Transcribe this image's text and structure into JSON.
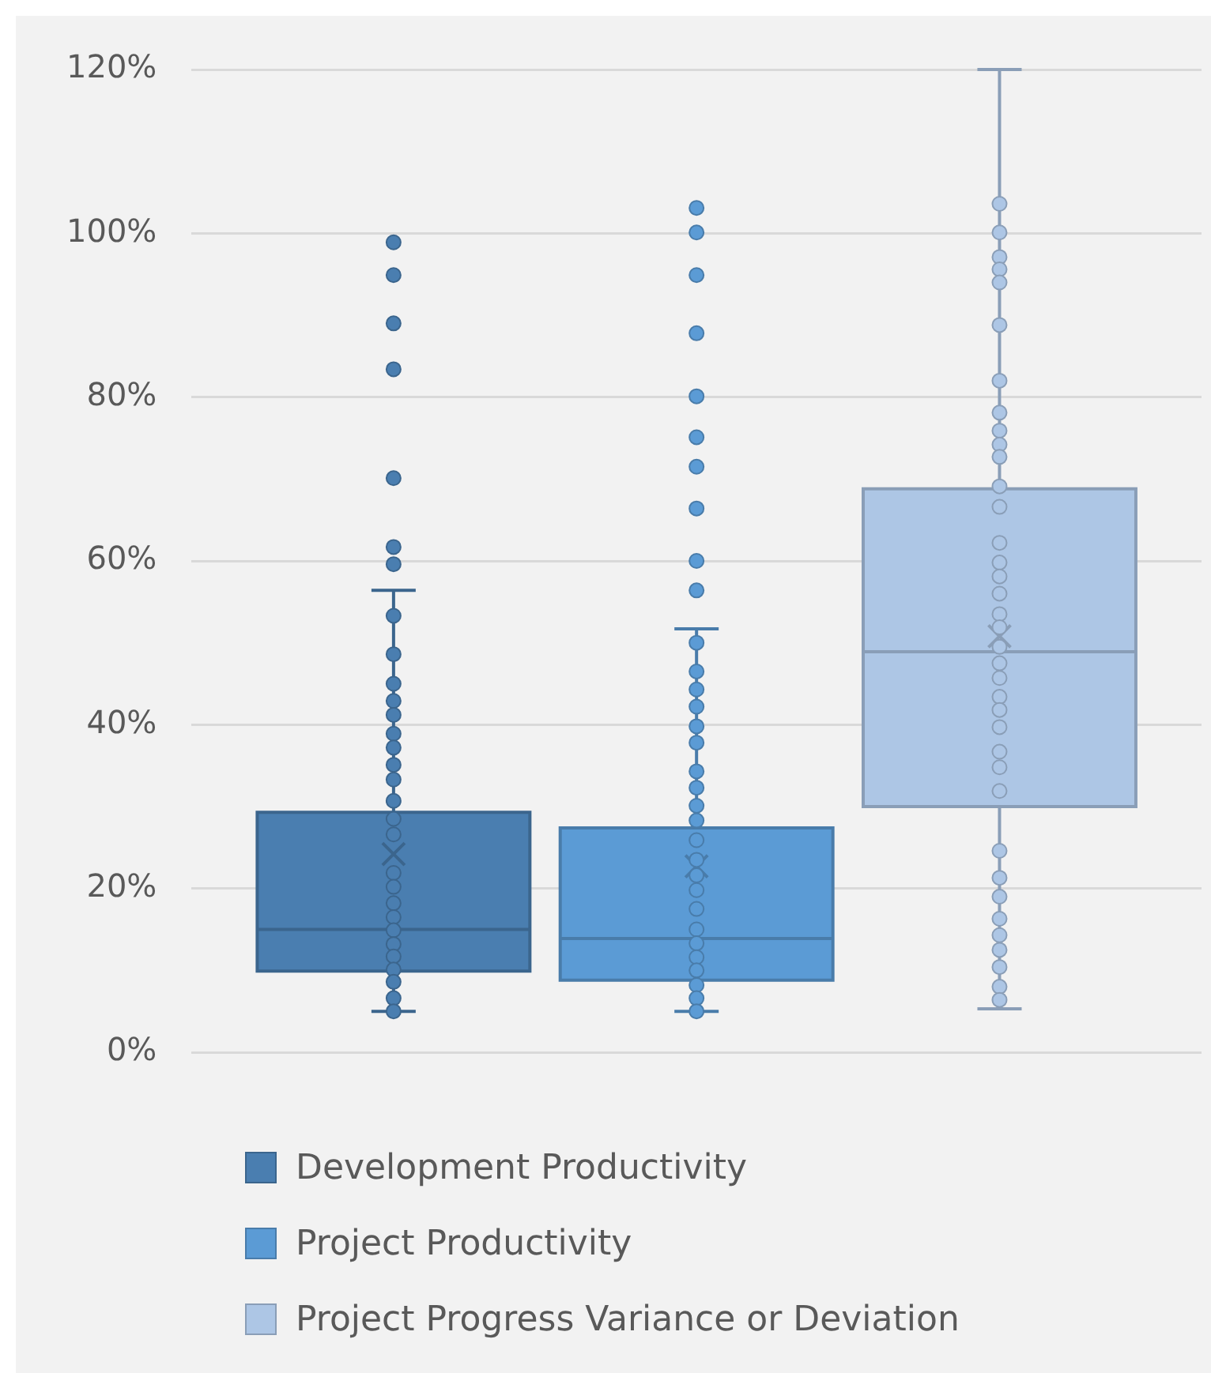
{
  "chart_data": {
    "type": "box",
    "categories": [
      null
    ],
    "series": [
      {
        "name": "Development Productivity",
        "color": "#4a7eb0",
        "boxes": [
          {
            "low": 5.0,
            "q1": 9.9,
            "median": 15.0,
            "q3": 29.3,
            "high": 56.4,
            "mean": 24.2,
            "outliers": [
              98.9,
              94.9,
              89.0,
              83.4,
              70.1,
              61.7,
              59.6,
              53.3,
              48.6,
              45.0,
              42.9,
              41.2,
              38.9,
              37.2,
              35.1,
              33.3,
              30.7,
              28.5,
              26.6,
              21.9,
              20.2,
              18.2,
              16.5,
              14.9,
              13.2,
              11.7,
              10.1,
              8.6,
              6.6,
              5.0
            ]
          }
        ]
      },
      {
        "name": "Project Productivity",
        "color": "#5b9bd5",
        "boxes": [
          {
            "low": 5.0,
            "q1": 8.8,
            "median": 13.9,
            "q3": 27.4,
            "high": 51.7,
            "mean": 22.7,
            "outliers": [
              103.1,
              100.1,
              94.9,
              87.8,
              80.1,
              75.1,
              71.5,
              66.4,
              60.0,
              56.4,
              50.0,
              46.5,
              44.3,
              42.2,
              39.8,
              37.8,
              34.3,
              32.3,
              30.1,
              28.3,
              25.9,
              23.5,
              21.6,
              19.8,
              17.5,
              15.0,
              13.3,
              11.6,
              10.0,
              8.2,
              6.6,
              5.0
            ]
          }
        ]
      },
      {
        "name": "Project Progress Variance or Deviation",
        "color": "#adc6e5",
        "boxes": [
          {
            "low": 5.3,
            "q1": 30.0,
            "median": 48.9,
            "q3": 68.8,
            "high": 120,
            "mean": 50.8,
            "outliers": [
              103.6,
              100.1,
              97.1,
              95.6,
              94.0,
              88.8,
              82.0,
              78.1,
              75.9,
              74.2,
              72.7,
              69.1,
              66.6,
              62.2,
              59.8,
              58.1,
              56.0,
              53.5,
              51.9,
              49.5,
              47.5,
              45.7,
              43.4,
              41.8,
              39.7,
              36.7,
              34.8,
              31.9,
              24.6,
              21.3,
              19.0,
              16.3,
              14.3,
              12.5,
              10.4,
              8.0,
              6.4
            ]
          }
        ]
      }
    ],
    "ylim": [
      0,
      120
    ],
    "yticks": [
      {
        "value": 0,
        "label": "0%"
      },
      {
        "value": 20,
        "label": "20%"
      },
      {
        "value": 40,
        "label": "40%"
      },
      {
        "value": 60,
        "label": "60%"
      },
      {
        "value": 80,
        "label": "80%"
      },
      {
        "value": 100,
        "label": "100%"
      },
      {
        "value": 120,
        "label": "120%"
      }
    ],
    "grid": "y",
    "legend": "bottom",
    "marker": "circle"
  }
}
